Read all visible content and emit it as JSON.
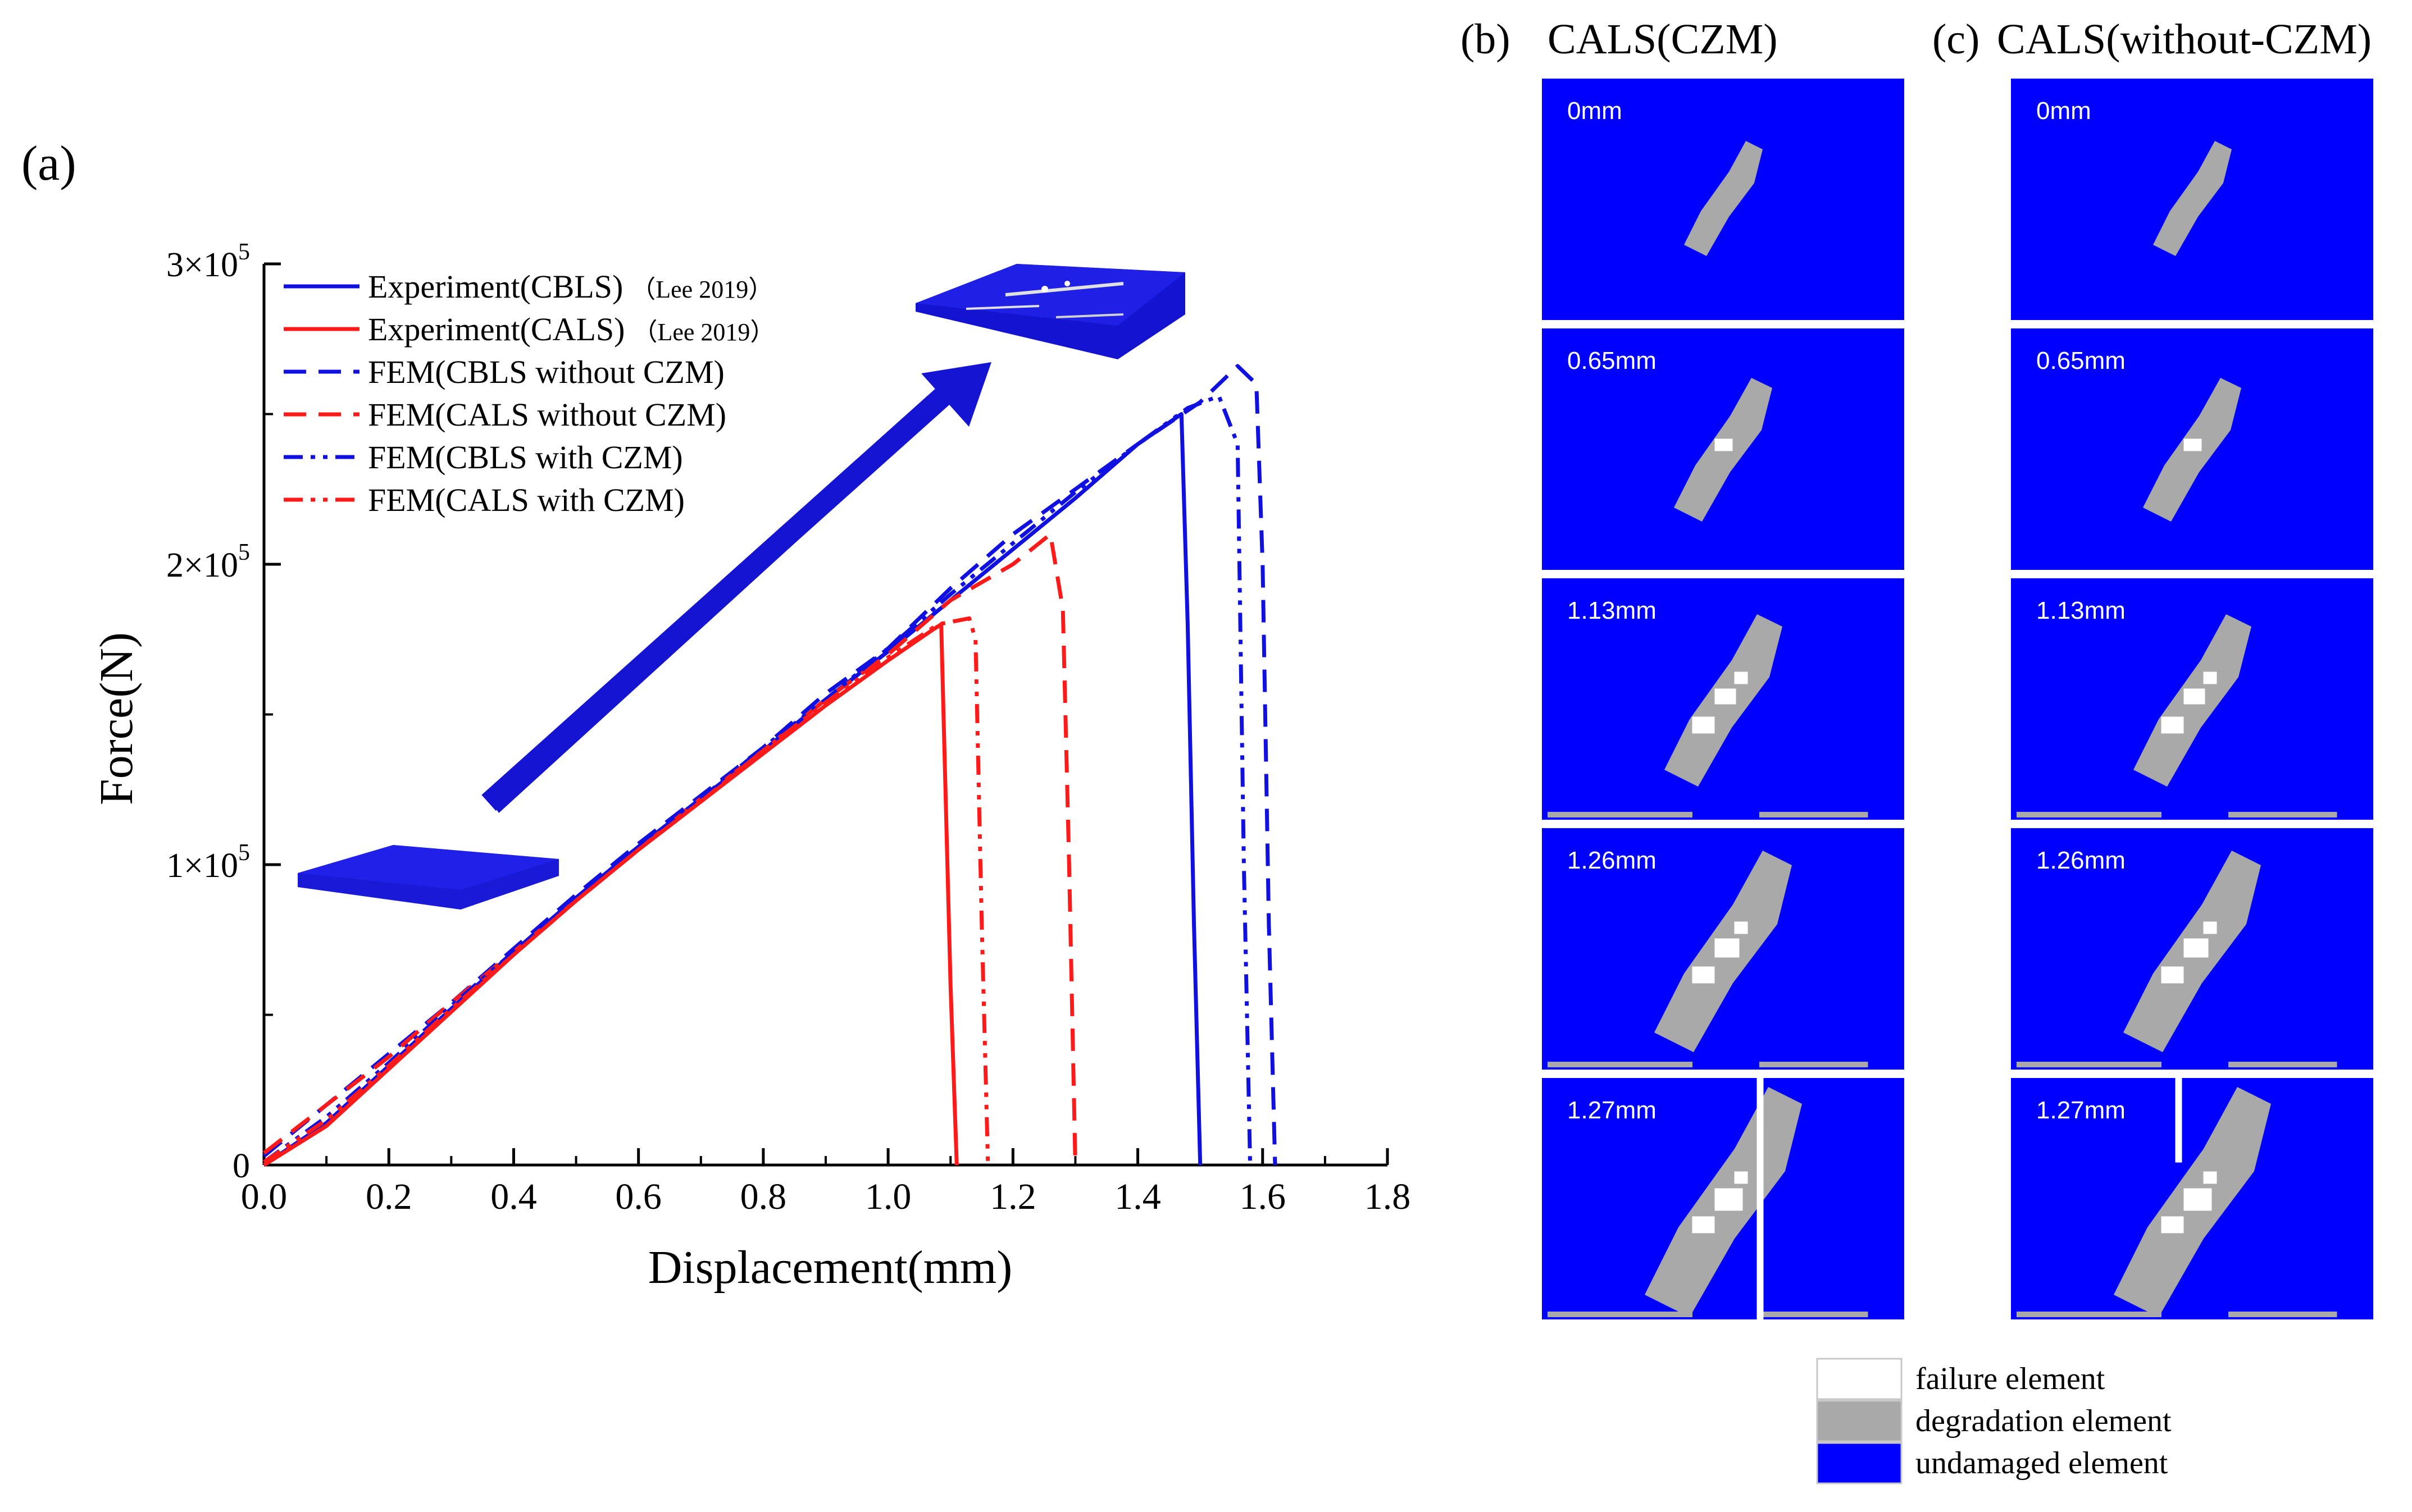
{
  "panel_labels": {
    "a": "(a)",
    "b": "(b)",
    "c": "(c)"
  },
  "colors": {
    "blue": "#1010e0",
    "red": "#ff1a1a",
    "plate": "#1414d2",
    "degradation": "#a9a9a9",
    "failure": "#ffffff",
    "undamaged": "#0000ff"
  },
  "chart_data": {
    "type": "line",
    "title": "",
    "xlabel": "Displacement(mm)",
    "ylabel": "Force(N)",
    "xlim": [
      0,
      1.8
    ],
    "ylim": [
      0,
      300000
    ],
    "x_ticks": [
      0,
      0.2,
      0.4,
      0.6,
      0.8,
      1.0,
      1.2,
      1.4,
      1.6,
      1.8
    ],
    "x_tick_labels": [
      "0.0",
      "0.2",
      "0.4",
      "0.6",
      "0.8",
      "1.0",
      "1.2",
      "1.4",
      "1.6",
      "1.8"
    ],
    "y_ticks": [
      0,
      100000,
      200000,
      300000
    ],
    "y_tick_labels": [
      {
        "base": "0",
        "exp": ""
      },
      {
        "base": "1×10",
        "exp": "5"
      },
      {
        "base": "2×10",
        "exp": "5"
      },
      {
        "base": "3×10",
        "exp": "5"
      }
    ],
    "legend_position": "top-left",
    "series": [
      {
        "name": "Experiment(CBLS)",
        "ref": "（Lee 2019）",
        "color": "#1010e0",
        "style": "solid",
        "x": [
          0,
          0.1,
          0.2,
          0.3,
          0.4,
          0.5,
          0.6,
          0.7,
          0.8,
          0.9,
          1.0,
          1.1,
          1.2,
          1.3,
          1.4,
          1.47,
          1.48,
          1.49,
          1.5
        ],
        "y": [
          0,
          14000,
          33000,
          52000,
          71000,
          89000,
          106000,
          122000,
          138000,
          155000,
          171000,
          188000,
          205000,
          222000,
          240000,
          250000,
          180000,
          80000,
          0
        ]
      },
      {
        "name": "Experiment(CALS)",
        "ref": "（Lee 2019）",
        "color": "#ff1a1a",
        "style": "solid",
        "x": [
          0,
          0.1,
          0.2,
          0.3,
          0.4,
          0.5,
          0.6,
          0.7,
          0.8,
          0.9,
          1.0,
          1.07,
          1.085,
          1.09,
          1.1,
          1.11
        ],
        "y": [
          0,
          13000,
          32000,
          51000,
          70000,
          88000,
          105000,
          121000,
          137000,
          153000,
          168000,
          178000,
          180000,
          140000,
          60000,
          0
        ]
      },
      {
        "name": "FEM(CBLS without CZM)",
        "ref": "",
        "color": "#1010e0",
        "style": "dash",
        "x": [
          0,
          0.1,
          0.2,
          0.3,
          0.4,
          0.5,
          0.6,
          0.7,
          0.8,
          0.9,
          1.0,
          1.1,
          1.2,
          1.3,
          1.4,
          1.5,
          1.56,
          1.59,
          1.6,
          1.61,
          1.62
        ],
        "y": [
          3000,
          20000,
          37000,
          54000,
          72000,
          90000,
          107000,
          123000,
          139000,
          157000,
          172000,
          192000,
          210000,
          225000,
          240000,
          254000,
          266000,
          260000,
          200000,
          80000,
          0
        ]
      },
      {
        "name": "FEM(CALS without CZM)",
        "ref": "",
        "color": "#ff1a1a",
        "style": "dash",
        "x": [
          0,
          0.1,
          0.2,
          0.3,
          0.4,
          0.5,
          0.6,
          0.7,
          0.8,
          0.9,
          1.0,
          1.1,
          1.2,
          1.26,
          1.28,
          1.29,
          1.3
        ],
        "y": [
          4000,
          20000,
          36000,
          54000,
          71000,
          88000,
          105000,
          122000,
          138000,
          155000,
          170000,
          188000,
          200000,
          210000,
          185000,
          100000,
          0
        ]
      },
      {
        "name": "FEM(CBLS with CZM)",
        "ref": "",
        "color": "#1010e0",
        "style": "dashdotdot",
        "x": [
          0,
          0.1,
          0.2,
          0.3,
          0.4,
          0.5,
          0.6,
          0.7,
          0.8,
          0.9,
          1.0,
          1.1,
          1.2,
          1.3,
          1.4,
          1.48,
          1.53,
          1.56,
          1.57,
          1.58
        ],
        "y": [
          1000,
          16000,
          34000,
          53000,
          71000,
          89000,
          106000,
          122000,
          139000,
          155000,
          172000,
          190000,
          207000,
          224000,
          240000,
          252000,
          256000,
          240000,
          100000,
          0
        ]
      },
      {
        "name": "FEM(CALS with CZM)",
        "ref": "",
        "color": "#ff1a1a",
        "style": "dashdotdot",
        "x": [
          0,
          0.1,
          0.2,
          0.3,
          0.4,
          0.5,
          0.6,
          0.7,
          0.8,
          0.9,
          1.0,
          1.08,
          1.13,
          1.14,
          1.15,
          1.16
        ],
        "y": [
          1000,
          15000,
          33000,
          52000,
          70000,
          88000,
          105000,
          121000,
          138000,
          154000,
          169000,
          180000,
          182000,
          175000,
          80000,
          0
        ]
      }
    ]
  },
  "snapshots": {
    "columns": [
      {
        "id": "czm",
        "panel": "(b)",
        "title": "CALS(CZM)"
      },
      {
        "id": "noczm",
        "panel": "(c)",
        "title": "CALS(without-CZM)"
      }
    ],
    "rows": [
      {
        "label": "0mm"
      },
      {
        "label": "0.65mm"
      },
      {
        "label": "1.13mm"
      },
      {
        "label": "1.26mm"
      },
      {
        "label": "1.27mm"
      }
    ]
  },
  "damage_legend": [
    {
      "label": "failure element",
      "color": "#ffffff"
    },
    {
      "label": "degradation element",
      "color": "#a9a9a9"
    },
    {
      "label": "undamaged element",
      "color": "#0000ff"
    }
  ]
}
